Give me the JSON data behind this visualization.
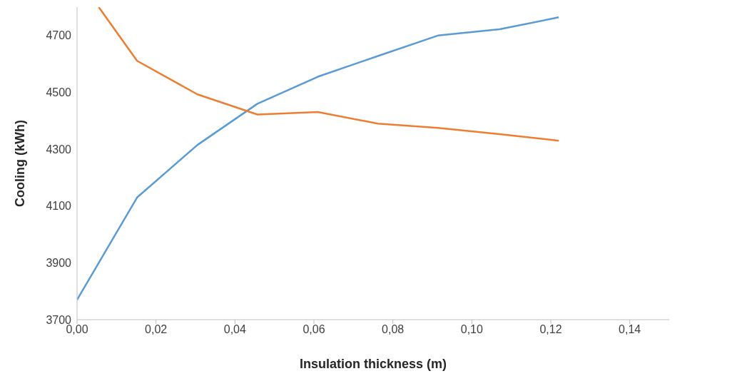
{
  "chart_data": {
    "type": "line",
    "xlabel": "Insulation thickness (m)",
    "ylabel": "Cooling (kWh)",
    "series": [
      {
        "color": "#5b9bd5",
        "x": [
          0,
          0.0152,
          0.0305,
          0.0457,
          0.061,
          0.0762,
          0.0914,
          0.107,
          0.122
        ],
        "values": [
          3770,
          4130,
          4315,
          4460,
          4555,
          4628,
          4700,
          4722,
          4764
        ]
      },
      {
        "color": "#ed7d31",
        "x": [
          0.0055,
          0.0152,
          0.0305,
          0.0457,
          0.061,
          0.0762,
          0.0914,
          0.107,
          0.122
        ],
        "values": [
          4800,
          4611,
          4493,
          4422,
          4431,
          4390,
          4375,
          4353,
          4330
        ]
      }
    ],
    "xlim": [
      0,
      0.15
    ],
    "xticks": [
      {
        "value": 0,
        "label": "0,00"
      },
      {
        "value": 0.02,
        "label": "0,02"
      },
      {
        "value": 0.04,
        "label": "0,04"
      },
      {
        "value": 0.06,
        "label": "0,06"
      },
      {
        "value": 0.08,
        "label": "0,08"
      },
      {
        "value": 0.1,
        "label": "0,10"
      },
      {
        "value": 0.12,
        "label": "0,12"
      },
      {
        "value": 0.14,
        "label": "0,14"
      }
    ],
    "ylim": [
      3700,
      4800
    ],
    "yticks": [
      3700,
      3900,
      4100,
      4300,
      4500,
      4700
    ],
    "grid": false,
    "marker": "none",
    "line_style": "solid"
  }
}
